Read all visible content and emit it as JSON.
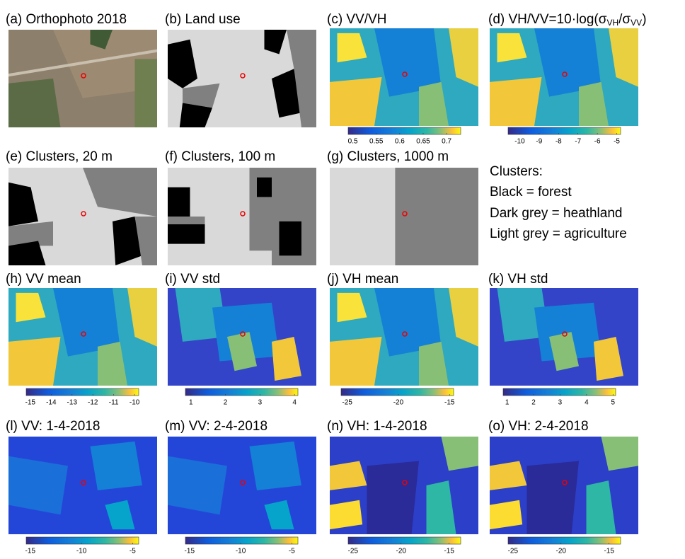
{
  "panels": [
    {
      "title": "(a) Orthophoto 2018"
    },
    {
      "title": "(b) Land use"
    },
    {
      "title": "(c) VV/VH",
      "colorbar": {
        "clim": [
          0.49,
          0.73
        ],
        "ticks": [
          0.5,
          0.55,
          0.6,
          0.65,
          0.7
        ]
      }
    },
    {
      "title": [
        "(d) VH/VV=10·log(σ",
        "VH",
        "/σ",
        "VV",
        ")"
      ],
      "colorbar": {
        "clim": [
          -10.6,
          -4.8
        ],
        "ticks": [
          -10,
          -9,
          -8,
          -7,
          -6,
          -5
        ]
      }
    },
    {
      "title": "(e) Clusters, 20 m"
    },
    {
      "title": "(f) Clusters, 100 m"
    },
    {
      "title": "(g) Clusters, 1000 m"
    },
    {
      "title": "(h) VV mean",
      "colorbar": {
        "clim": [
          -15.2,
          -9.8
        ],
        "ticks": [
          -15,
          -14,
          -13,
          -12,
          -11,
          -10
        ]
      }
    },
    {
      "title": "(i) VV std",
      "colorbar": {
        "clim": [
          0.84,
          4.1
        ],
        "ticks": [
          1,
          2,
          3,
          4
        ]
      }
    },
    {
      "title": "(j) VH mean",
      "colorbar": {
        "clim": [
          -25.6,
          -14.6
        ],
        "ticks": [
          -25,
          -20,
          -15
        ]
      }
    },
    {
      "title": "(k) VH std",
      "colorbar": {
        "clim": [
          0.85,
          5.1
        ],
        "ticks": [
          1,
          2,
          3,
          4,
          5
        ]
      }
    },
    {
      "title": "(l) VV: 1-4-2018",
      "colorbar": {
        "clim": [
          -15.4,
          -4.4
        ],
        "ticks": [
          -15,
          -10,
          -5
        ]
      }
    },
    {
      "title": "(m) VV: 2-4-2018",
      "colorbar": {
        "clim": [
          -15.4,
          -4.4
        ],
        "ticks": [
          -15,
          -10,
          -5
        ]
      }
    },
    {
      "title": "(n) VH: 1-4-2018",
      "colorbar": {
        "clim": [
          -25.5,
          -13.8
        ],
        "ticks": [
          -25,
          -20,
          -15
        ]
      }
    },
    {
      "title": "(o) VH: 2-4-2018",
      "colorbar": {
        "clim": [
          -25.5,
          -13.8
        ],
        "ticks": [
          -25,
          -20,
          -15
        ]
      }
    }
  ],
  "legend": {
    "heading": "Clusters:",
    "items": [
      "Black = forest",
      "Dark grey = heathland",
      "Light grey = agriculture"
    ]
  }
}
